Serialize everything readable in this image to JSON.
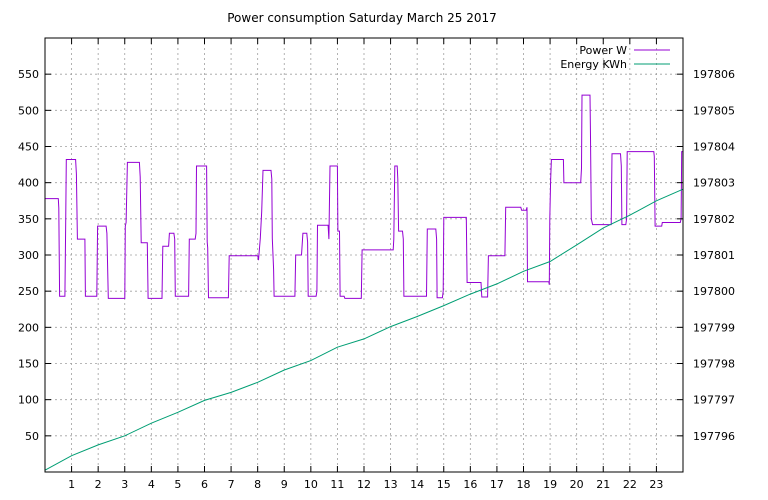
{
  "chart_data": {
    "type": "line",
    "title": "Power consumption Saturday March 25 2017",
    "xlabel": "",
    "ylabel": "",
    "xlim": [
      0,
      24
    ],
    "ylim": [
      0,
      600
    ],
    "y2lim": [
      197795,
      197807
    ],
    "x_ticks": [
      1,
      2,
      3,
      4,
      5,
      6,
      7,
      8,
      9,
      10,
      11,
      12,
      13,
      14,
      15,
      16,
      17,
      18,
      19,
      20,
      21,
      22,
      23
    ],
    "y_ticks": [
      50,
      100,
      150,
      200,
      250,
      300,
      350,
      400,
      450,
      500,
      550
    ],
    "y2_ticks": [
      197796,
      197797,
      197798,
      197799,
      197800,
      197801,
      197802,
      197803,
      197804,
      197805,
      197806
    ],
    "grid": true,
    "legend_position": "top-right",
    "colors": {
      "power": "#9400d3",
      "energy": "#009e73"
    },
    "series": [
      {
        "name": "Power W",
        "axis": "y",
        "color": "#9400d3",
        "points": [
          [
            0,
            378
          ],
          [
            0.5,
            378
          ],
          [
            0.52,
            365
          ],
          [
            0.55,
            243
          ],
          [
            0.75,
            243
          ],
          [
            0.78,
            345
          ],
          [
            0.8,
            432
          ],
          [
            1.15,
            432
          ],
          [
            1.18,
            412
          ],
          [
            1.22,
            322
          ],
          [
            1.5,
            322
          ],
          [
            1.52,
            243
          ],
          [
            1.95,
            243
          ],
          [
            1.98,
            340
          ],
          [
            2.3,
            340
          ],
          [
            2.33,
            330
          ],
          [
            2.38,
            240
          ],
          [
            3.0,
            240
          ],
          [
            3.02,
            340
          ],
          [
            3.05,
            345
          ],
          [
            3.1,
            428
          ],
          [
            3.55,
            428
          ],
          [
            3.58,
            408
          ],
          [
            3.62,
            317
          ],
          [
            3.85,
            317
          ],
          [
            3.88,
            240
          ],
          [
            4.4,
            240
          ],
          [
            4.43,
            312
          ],
          [
            4.65,
            312
          ],
          [
            4.68,
            330
          ],
          [
            4.85,
            330
          ],
          [
            4.88,
            322
          ],
          [
            4.9,
            243
          ],
          [
            5.4,
            243
          ],
          [
            5.43,
            322
          ],
          [
            5.65,
            322
          ],
          [
            5.68,
            330
          ],
          [
            5.7,
            423
          ],
          [
            6.08,
            423
          ],
          [
            6.1,
            318
          ],
          [
            6.12,
            310
          ],
          [
            6.15,
            241
          ],
          [
            6.9,
            241
          ],
          [
            6.93,
            299
          ],
          [
            8.0,
            299
          ],
          [
            8.03,
            293
          ],
          [
            8.1,
            323
          ],
          [
            8.15,
            360
          ],
          [
            8.2,
            417
          ],
          [
            8.5,
            417
          ],
          [
            8.53,
            405
          ],
          [
            8.55,
            323
          ],
          [
            8.6,
            280
          ],
          [
            8.62,
            243
          ],
          [
            9.4,
            243
          ],
          [
            9.43,
            300
          ],
          [
            9.65,
            300
          ],
          [
            9.7,
            330
          ],
          [
            9.85,
            330
          ],
          [
            9.88,
            318
          ],
          [
            9.9,
            243
          ],
          [
            10.2,
            243
          ],
          [
            10.23,
            250
          ],
          [
            10.25,
            341
          ],
          [
            10.65,
            341
          ],
          [
            10.68,
            322
          ],
          [
            10.72,
            423
          ],
          [
            11.0,
            423
          ],
          [
            11.02,
            333
          ],
          [
            11.08,
            333
          ],
          [
            11.1,
            243
          ],
          [
            11.25,
            243
          ],
          [
            11.28,
            240
          ],
          [
            11.9,
            240
          ],
          [
            11.93,
            307
          ],
          [
            13.1,
            307
          ],
          [
            13.12,
            322
          ],
          [
            13.16,
            423
          ],
          [
            13.25,
            423
          ],
          [
            13.27,
            405
          ],
          [
            13.3,
            333
          ],
          [
            13.45,
            333
          ],
          [
            13.48,
            322
          ],
          [
            13.5,
            243
          ],
          [
            14.35,
            243
          ],
          [
            14.38,
            336
          ],
          [
            14.7,
            336
          ],
          [
            14.73,
            322
          ],
          [
            14.75,
            241
          ],
          [
            14.95,
            241
          ],
          [
            14.98,
            250
          ],
          [
            15.0,
            352
          ],
          [
            15.85,
            352
          ],
          [
            15.88,
            262
          ],
          [
            16.4,
            262
          ],
          [
            16.43,
            242
          ],
          [
            16.65,
            242
          ],
          [
            16.68,
            299
          ],
          [
            17.3,
            299
          ],
          [
            17.33,
            366
          ],
          [
            17.9,
            366
          ],
          [
            17.93,
            362
          ],
          [
            18.1,
            362
          ],
          [
            18.13,
            366
          ],
          [
            18.15,
            263
          ],
          [
            18.95,
            263
          ],
          [
            18.97,
            259
          ],
          [
            18.99,
            350
          ],
          [
            19.02,
            402
          ],
          [
            19.05,
            432
          ],
          [
            19.5,
            432
          ],
          [
            19.52,
            400
          ],
          [
            20.15,
            400
          ],
          [
            20.18,
            420
          ],
          [
            20.2,
            521
          ],
          [
            20.5,
            521
          ],
          [
            20.52,
            463
          ],
          [
            20.55,
            350
          ],
          [
            20.6,
            342
          ],
          [
            21.3,
            342
          ],
          [
            21.33,
            440
          ],
          [
            21.65,
            440
          ],
          [
            21.68,
            423
          ],
          [
            21.7,
            342
          ],
          [
            21.85,
            342
          ],
          [
            21.88,
            350
          ],
          [
            21.9,
            443
          ],
          [
            22.9,
            443
          ],
          [
            22.92,
            436
          ],
          [
            22.95,
            340
          ],
          [
            23.2,
            340
          ],
          [
            23.22,
            345
          ],
          [
            23.9,
            345
          ],
          [
            23.93,
            350
          ],
          [
            23.95,
            443
          ],
          [
            24.0,
            443
          ]
        ]
      },
      {
        "name": "Energy KWh",
        "axis": "y2",
        "color": "#009e73",
        "points": [
          [
            0,
            197795.05
          ],
          [
            1,
            197795.45
          ],
          [
            2,
            197795.75
          ],
          [
            3,
            197796.0
          ],
          [
            4,
            197796.35
          ],
          [
            5,
            197796.65
          ],
          [
            6,
            197796.98
          ],
          [
            7,
            197797.2
          ],
          [
            8,
            197797.48
          ],
          [
            9,
            197797.82
          ],
          [
            10,
            197798.08
          ],
          [
            11,
            197798.45
          ],
          [
            12,
            197798.68
          ],
          [
            13,
            197799.02
          ],
          [
            14,
            197799.3
          ],
          [
            15,
            197799.6
          ],
          [
            16,
            197799.92
          ],
          [
            17,
            197800.2
          ],
          [
            18,
            197800.55
          ],
          [
            19,
            197800.82
          ],
          [
            20,
            197801.28
          ],
          [
            21,
            197801.75
          ],
          [
            22,
            197802.1
          ],
          [
            23,
            197802.5
          ],
          [
            24,
            197802.82
          ]
        ]
      }
    ]
  }
}
